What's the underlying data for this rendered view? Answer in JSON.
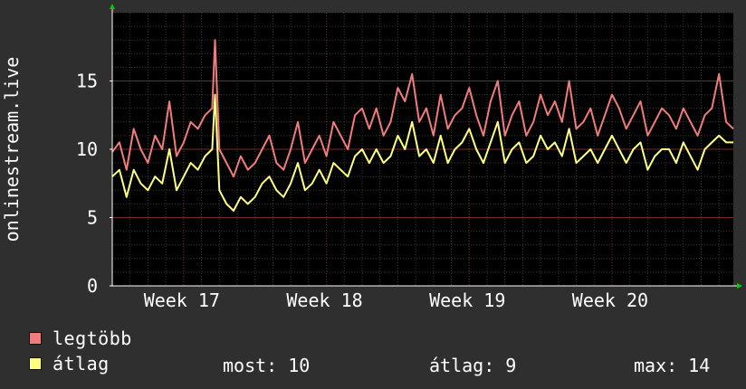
{
  "chart_data": {
    "type": "line",
    "ylabel": "onlinestream.live",
    "xlabel": "",
    "title": "",
    "ylim": [
      0,
      20
    ],
    "yticks": [
      0,
      5,
      10,
      15
    ],
    "xtick_labels": [
      "Week 17",
      "Week 18",
      "Week 19",
      "Week 20"
    ],
    "xtick_positions": [
      0.5,
      1.5,
      2.5,
      3.5
    ],
    "xlim": [
      0,
      4.35
    ],
    "grid": true,
    "legend_position": "bottom",
    "series": [
      {
        "name": "legtöbb",
        "color": "#f27c7c",
        "x": [
          0.0,
          0.05,
          0.1,
          0.15,
          0.2,
          0.25,
          0.3,
          0.35,
          0.4,
          0.45,
          0.5,
          0.55,
          0.6,
          0.65,
          0.7,
          0.72,
          0.75,
          0.8,
          0.85,
          0.9,
          0.95,
          1.0,
          1.05,
          1.1,
          1.15,
          1.2,
          1.25,
          1.3,
          1.35,
          1.4,
          1.45,
          1.5,
          1.55,
          1.6,
          1.65,
          1.7,
          1.75,
          1.8,
          1.85,
          1.9,
          1.95,
          2.0,
          2.05,
          2.1,
          2.15,
          2.2,
          2.25,
          2.3,
          2.35,
          2.4,
          2.45,
          2.5,
          2.55,
          2.6,
          2.65,
          2.7,
          2.75,
          2.8,
          2.85,
          2.9,
          2.95,
          3.0,
          3.05,
          3.1,
          3.15,
          3.2,
          3.25,
          3.3,
          3.35,
          3.4,
          3.45,
          3.5,
          3.55,
          3.6,
          3.65,
          3.7,
          3.75,
          3.8,
          3.85,
          3.9,
          3.95,
          4.0,
          4.05,
          4.1,
          4.15,
          4.2,
          4.25,
          4.3,
          4.35
        ],
        "values": [
          9.8,
          10.5,
          8.5,
          11.5,
          10,
          9,
          11,
          10,
          13.5,
          9.5,
          10.5,
          12,
          11.5,
          12.5,
          13,
          18,
          10,
          9,
          8,
          9.5,
          8.5,
          9,
          10,
          11,
          9,
          8.5,
          10,
          12,
          9,
          10,
          11,
          9.5,
          12,
          11,
          10,
          12.5,
          13,
          11.5,
          13,
          11,
          12,
          14.5,
          13.5,
          15.5,
          12,
          13,
          11,
          14,
          11.5,
          12.5,
          13,
          14.5,
          12.5,
          11,
          13.5,
          15,
          11,
          12.5,
          13.5,
          11,
          12,
          14,
          12.5,
          13.5,
          12,
          15,
          11.5,
          12,
          13,
          11,
          12.5,
          14,
          13,
          11.5,
          12.5,
          13.5,
          11,
          12,
          13,
          12.5,
          11.5,
          13,
          12,
          11,
          12.5,
          13,
          15.5,
          12,
          11.5
        ]
      },
      {
        "name": "átlag",
        "color": "#ffff80",
        "x": [
          0.0,
          0.05,
          0.1,
          0.15,
          0.2,
          0.25,
          0.3,
          0.35,
          0.4,
          0.45,
          0.5,
          0.55,
          0.6,
          0.65,
          0.7,
          0.72,
          0.75,
          0.8,
          0.85,
          0.9,
          0.95,
          1.0,
          1.05,
          1.1,
          1.15,
          1.2,
          1.25,
          1.3,
          1.35,
          1.4,
          1.45,
          1.5,
          1.55,
          1.6,
          1.65,
          1.7,
          1.75,
          1.8,
          1.85,
          1.9,
          1.95,
          2.0,
          2.05,
          2.1,
          2.15,
          2.2,
          2.25,
          2.3,
          2.35,
          2.4,
          2.45,
          2.5,
          2.55,
          2.6,
          2.65,
          2.7,
          2.75,
          2.8,
          2.85,
          2.9,
          2.95,
          3.0,
          3.05,
          3.1,
          3.15,
          3.2,
          3.25,
          3.3,
          3.35,
          3.4,
          3.45,
          3.5,
          3.55,
          3.6,
          3.65,
          3.7,
          3.75,
          3.8,
          3.85,
          3.9,
          3.95,
          4.0,
          4.05,
          4.1,
          4.15,
          4.2,
          4.25,
          4.3,
          4.35
        ],
        "values": [
          8,
          8.5,
          6.5,
          8.5,
          7.5,
          7,
          8,
          7.5,
          10,
          7,
          8,
          9,
          8.5,
          9.5,
          10,
          14,
          7,
          6,
          5.5,
          6.5,
          6,
          6.5,
          7.5,
          8,
          7,
          6.5,
          7.5,
          9,
          7,
          7.5,
          8.5,
          7.5,
          9,
          8.5,
          8,
          9.5,
          10,
          9,
          10,
          9,
          9.5,
          11,
          10,
          12,
          9.5,
          10,
          9,
          11,
          9,
          10,
          10.5,
          11.5,
          10,
          9,
          10.5,
          12,
          9,
          10,
          10.5,
          9,
          9.5,
          11,
          10,
          10.5,
          9.5,
          11.5,
          9,
          9.5,
          10,
          9,
          10,
          11,
          10,
          9,
          10,
          10.5,
          8.5,
          9.5,
          10,
          10,
          9,
          10.5,
          9.5,
          8.5,
          10,
          10.5,
          11,
          10.5,
          10.5
        ]
      }
    ]
  },
  "legend": {
    "max_label": "legtöbb",
    "avg_label": "átlag"
  },
  "stats": {
    "now_label": "most:",
    "now_value": "10",
    "avg_label": "átlag:",
    "avg_value": "9",
    "max_label": "max:",
    "max_value": "14"
  }
}
